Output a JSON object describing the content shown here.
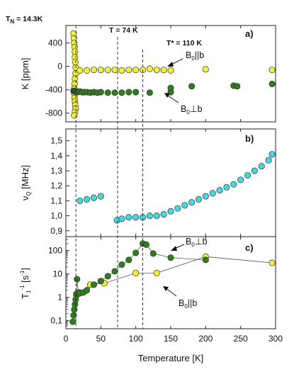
{
  "colors": {
    "yellow": "#f3f03a",
    "green": "#2f7d1e",
    "cyan": "#45d8df",
    "stroke": "#333333"
  },
  "figure": {
    "xlabel": "Temperature [K]",
    "transitions": [
      {
        "T": 14.3,
        "label": "T_N = 14.3K"
      },
      {
        "T": 74,
        "label": "T = 74 K"
      },
      {
        "T": 110,
        "label": "T* = 110 K"
      }
    ]
  },
  "chart_data": [
    {
      "type": "scatter",
      "panel": "a)",
      "ylabel": "K [ppm]",
      "xlim": [
        0,
        300
      ],
      "ylim": [
        -900,
        650
      ],
      "yticks": [
        400,
        0,
        -400,
        -800
      ],
      "annotations": [
        {
          "text": "B0||b",
          "points_to": [
            160,
            -70
          ]
        },
        {
          "text": "B0⊥b",
          "points_to": [
            150,
            -440
          ]
        }
      ],
      "series": [
        {
          "name": "B0||b",
          "color": "yellow",
          "x": [
            11,
            11.5,
            12,
            12.5,
            13,
            13,
            13.5,
            14,
            14,
            13,
            12.5,
            12,
            12,
            12.5,
            13,
            13.5,
            14,
            13,
            12,
            20,
            30,
            40,
            50,
            60,
            70,
            80,
            90,
            100,
            110,
            120,
            130,
            140,
            150,
            200,
            295
          ],
          "y": [
            560,
            480,
            400,
            330,
            250,
            160,
            70,
            -20,
            -120,
            -210,
            -300,
            -380,
            -460,
            -540,
            -600,
            -660,
            -720,
            -780,
            -840,
            -70,
            -70,
            -60,
            -60,
            -60,
            -60,
            -70,
            -60,
            -60,
            -60,
            -40,
            -60,
            -60,
            -70,
            -50,
            -60
          ]
        },
        {
          "name": "B0⊥b",
          "color": "green",
          "x": [
            11,
            12,
            13,
            14,
            15,
            16,
            17,
            20,
            23,
            26,
            30,
            35,
            40,
            45,
            50,
            60,
            70,
            80,
            90,
            100,
            120,
            150,
            150,
            180,
            240,
            245,
            295
          ],
          "y": [
            -420,
            -420,
            -430,
            -430,
            -440,
            -430,
            -440,
            -430,
            -440,
            -440,
            -440,
            -450,
            -440,
            -450,
            -440,
            -450,
            -450,
            -450,
            -440,
            -440,
            -450,
            -440,
            -370,
            -340,
            -330,
            -340,
            -300
          ]
        }
      ]
    },
    {
      "type": "scatter",
      "panel": "b)",
      "ylabel": "νQ [MHz]",
      "xlim": [
        0,
        300
      ],
      "ylim": [
        0.88,
        1.56
      ],
      "yticks": [
        0.9,
        1.0,
        1.1,
        1.2,
        1.3,
        1.4,
        1.5
      ],
      "series": [
        {
          "name": "νQ",
          "color": "cyan",
          "x": [
            20,
            30,
            40,
            50,
            73,
            80,
            90,
            100,
            110,
            120,
            130,
            140,
            150,
            160,
            170,
            180,
            190,
            200,
            210,
            220,
            230,
            240,
            250,
            260,
            270,
            280,
            290,
            295
          ],
          "y": [
            1.1,
            1.11,
            1.12,
            1.13,
            0.97,
            0.98,
            0.99,
            0.99,
            0.99,
            1.0,
            1.0,
            1.01,
            1.03,
            1.05,
            1.07,
            1.09,
            1.11,
            1.13,
            1.15,
            1.17,
            1.19,
            1.21,
            1.24,
            1.27,
            1.3,
            1.33,
            1.37,
            1.41
          ]
        }
      ]
    },
    {
      "type": "line",
      "panel": "c)",
      "ylabel": "T1^-1 [s^-1]",
      "xlim": [
        0,
        300
      ],
      "ylim": [
        0.06,
        300
      ],
      "yscale": "log",
      "yticks": [
        0.1,
        1,
        10,
        100
      ],
      "yticklabels": [
        "0,1",
        "1",
        "10",
        "100"
      ],
      "annotations": [
        {
          "text": "B0⊥b",
          "points_to": [
            150,
            55
          ]
        },
        {
          "text": "B0||b",
          "points_to": [
            130,
            12
          ]
        }
      ],
      "series": [
        {
          "name": "B0||b",
          "color": "yellow",
          "x": [
            15,
            18,
            20,
            35,
            55,
            100,
            130,
            200,
            295
          ],
          "y": [
            1.2,
            1.4,
            1.6,
            3.5,
            4,
            11,
            11,
            55,
            30
          ]
        },
        {
          "name": "B0⊥b",
          "color": "green",
          "x": [
            10,
            11,
            12,
            13,
            14,
            15,
            16,
            18,
            20,
            25,
            30,
            40,
            50,
            60,
            70,
            80,
            90,
            100,
            110,
            115,
            125,
            150,
            200
          ],
          "y": [
            0.09,
            0.17,
            0.3,
            0.5,
            0.8,
            1.4,
            6,
            1.6,
            1.5,
            1.6,
            2,
            3.5,
            5,
            8,
            13,
            25,
            40,
            80,
            200,
            180,
            75,
            50,
            40
          ]
        }
      ]
    }
  ]
}
